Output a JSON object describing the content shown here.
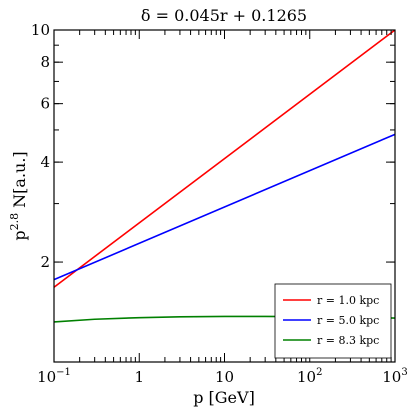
{
  "chart_data": {
    "type": "line",
    "title": "δ = 0.045r + 0.1265",
    "xlabel": "p [GeV]",
    "ylabel": "p2.8 N[a.u.]",
    "ylabel_base": "p",
    "ylabel_exp": "2.8",
    "ylabel_rest": " N[a.u.]",
    "x_scale": "log",
    "y_scale": "log",
    "xlim": [
      0.1,
      1000
    ],
    "ylim": [
      1,
      10
    ],
    "x_ticks": [
      {
        "value": 0.1,
        "base": "10",
        "exp": "−1"
      },
      {
        "value": 1,
        "base": "1",
        "exp": ""
      },
      {
        "value": 10,
        "base": "10",
        "exp": ""
      },
      {
        "value": 100,
        "base": "10",
        "exp": "2"
      },
      {
        "value": 1000,
        "base": "10",
        "exp": "3"
      }
    ],
    "y_ticks": [
      {
        "value": 2,
        "label": "2"
      },
      {
        "value": 4,
        "label": "4"
      },
      {
        "value": 6,
        "label": "6"
      },
      {
        "value": 8,
        "label": "8"
      },
      {
        "value": 10,
        "label": "10"
      }
    ],
    "legend_position": "bottom-right",
    "series": [
      {
        "name": "r = 1.0 kpc",
        "color": "#ff0000",
        "x": [
          0.1,
          1000
        ],
        "y": [
          1.68,
          10.0
        ]
      },
      {
        "name": "r = 5.0 kpc",
        "color": "#0000ff",
        "x": [
          0.1,
          1000
        ],
        "y": [
          1.77,
          4.85
        ]
      },
      {
        "name": "r = 8.3 kpc",
        "color": "#008000",
        "x": [
          0.1,
          0.3,
          1,
          3,
          10,
          30,
          100,
          300,
          1000
        ],
        "y": [
          1.32,
          1.345,
          1.36,
          1.368,
          1.372,
          1.372,
          1.369,
          1.364,
          1.356
        ]
      }
    ]
  }
}
